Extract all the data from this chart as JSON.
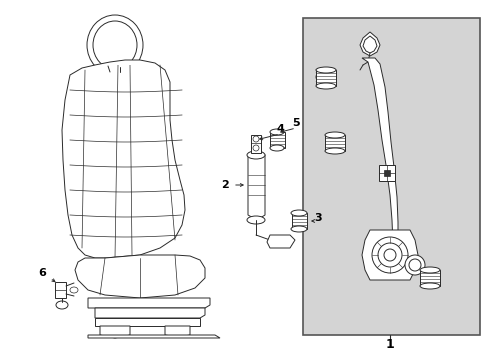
{
  "background_color": "#ffffff",
  "box_bg_color": "#d8d8d8",
  "line_color": "#2a2a2a",
  "fig_width": 4.89,
  "fig_height": 3.6,
  "dpi": 100
}
